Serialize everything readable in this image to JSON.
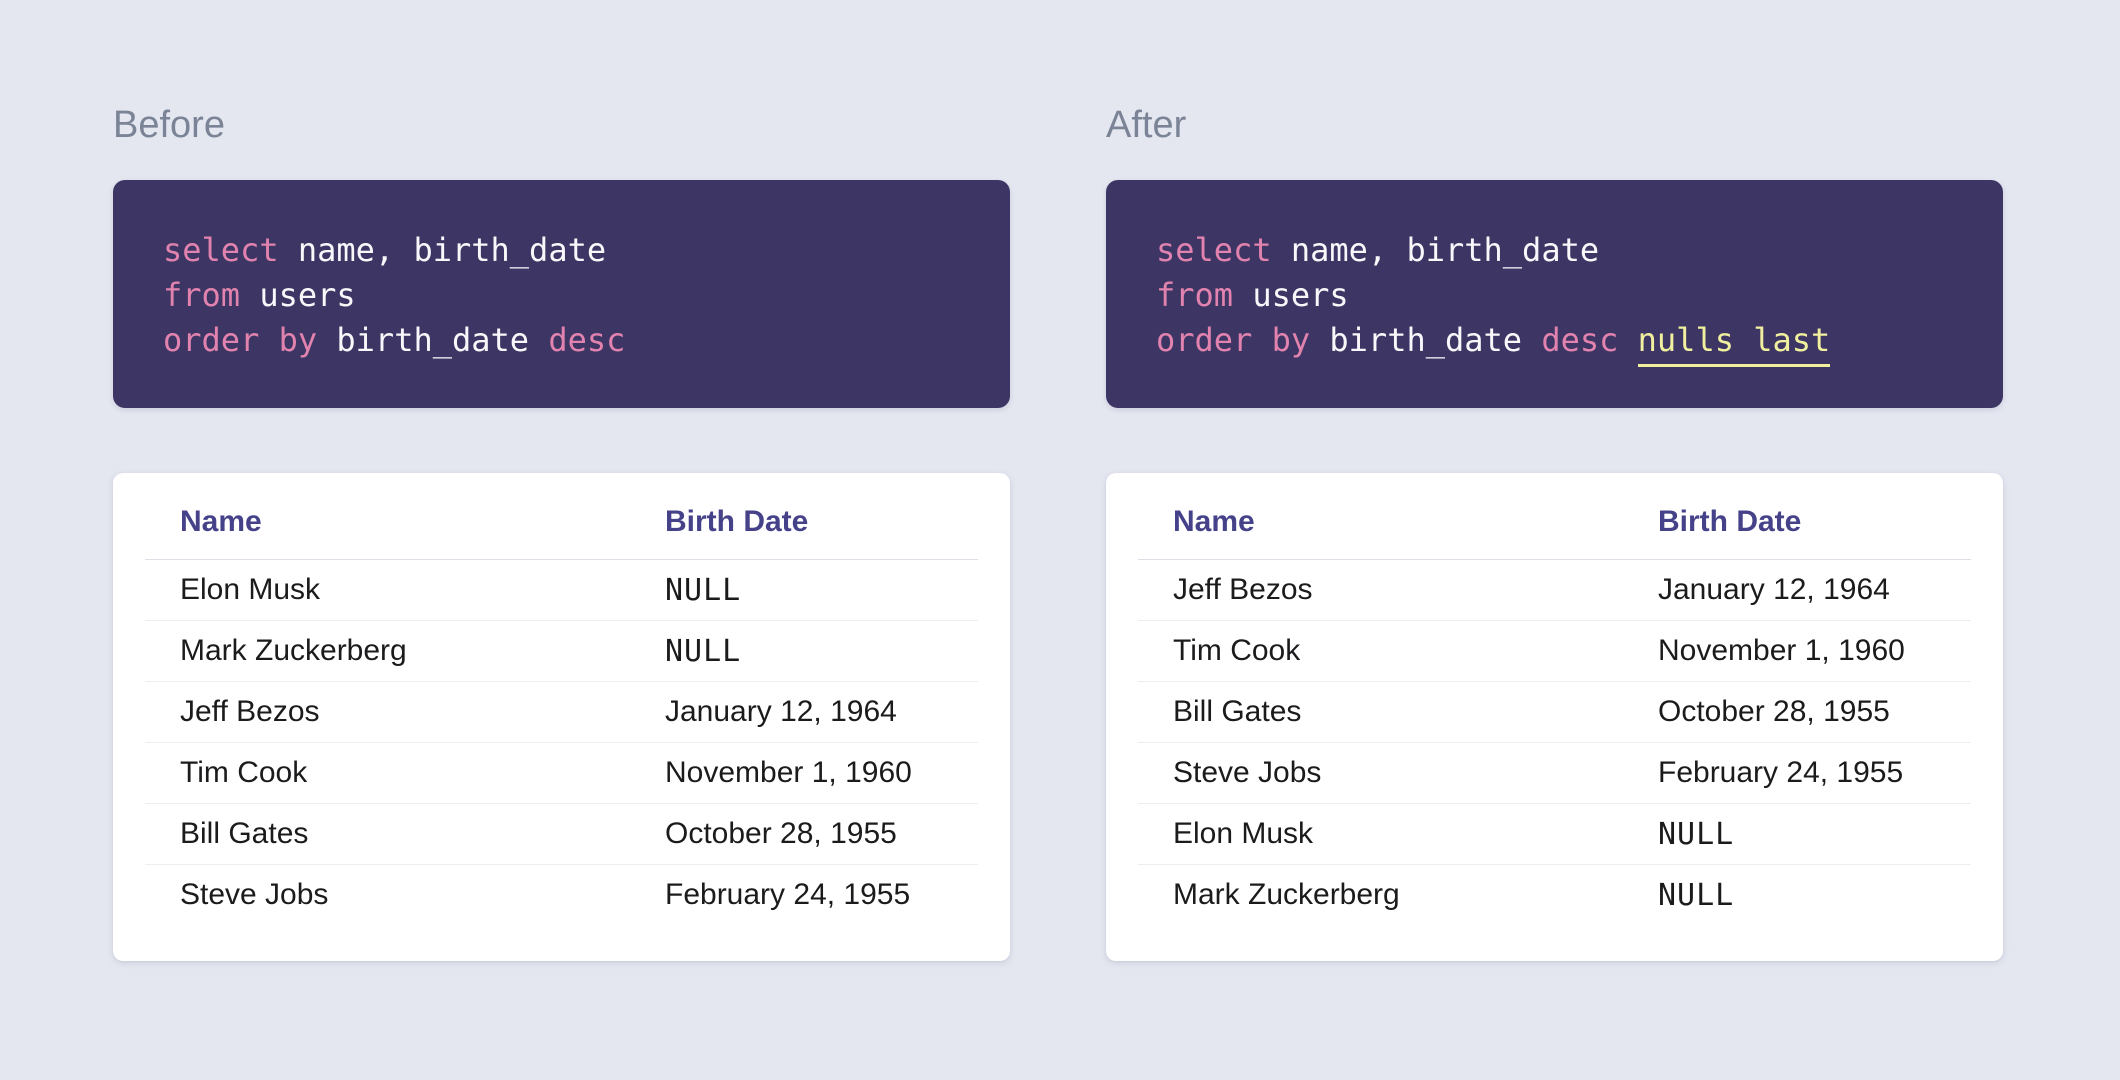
{
  "colors": {
    "page_background": "#E4E7F0",
    "code_background": "#3D3665",
    "keyword_pink": "#E183AE",
    "code_text": "#FAF7FA",
    "highlight_yellow": "#F0F09E",
    "table_header_indigo": "#464289",
    "heading_gray": "#7B8496",
    "null_gray": "#8A93A4",
    "cell_text": "#1B1B1D"
  },
  "panels": [
    {
      "id": "before",
      "heading": "Before",
      "code": {
        "lines": [
          {
            "segments": [
              {
                "text": "select",
                "style": "keyword"
              },
              {
                "text": " name, birth_date",
                "style": "plain"
              }
            ]
          },
          {
            "segments": [
              {
                "text": "from",
                "style": "keyword"
              },
              {
                "text": " users",
                "style": "plain"
              }
            ]
          },
          {
            "segments": [
              {
                "text": "order by",
                "style": "keyword"
              },
              {
                "text": " birth_date ",
                "style": "plain"
              },
              {
                "text": "desc",
                "style": "keyword"
              }
            ]
          }
        ]
      },
      "table": {
        "columns": [
          "Name",
          "Birth Date"
        ],
        "rows": [
          {
            "name": "Elon Musk",
            "birth_date": "NULL",
            "null_value": true
          },
          {
            "name": "Mark Zuckerberg",
            "birth_date": "NULL",
            "null_value": true
          },
          {
            "name": "Jeff Bezos",
            "birth_date": "January 12, 1964",
            "null_value": false
          },
          {
            "name": "Tim Cook",
            "birth_date": "November 1, 1960",
            "null_value": false
          },
          {
            "name": "Bill Gates",
            "birth_date": "October 28, 1955",
            "null_value": false
          },
          {
            "name": "Steve Jobs",
            "birth_date": "February 24, 1955",
            "null_value": false
          }
        ]
      }
    },
    {
      "id": "after",
      "heading": "After",
      "code": {
        "lines": [
          {
            "segments": [
              {
                "text": "select",
                "style": "keyword"
              },
              {
                "text": " name, birth_date",
                "style": "plain"
              }
            ]
          },
          {
            "segments": [
              {
                "text": "from",
                "style": "keyword"
              },
              {
                "text": " users",
                "style": "plain"
              }
            ]
          },
          {
            "segments": [
              {
                "text": "order by",
                "style": "keyword"
              },
              {
                "text": " birth_date ",
                "style": "plain"
              },
              {
                "text": "desc",
                "style": "keyword"
              },
              {
                "text": " ",
                "style": "plain"
              },
              {
                "text": "nulls last",
                "style": "highlight"
              }
            ]
          }
        ]
      },
      "table": {
        "columns": [
          "Name",
          "Birth Date"
        ],
        "rows": [
          {
            "name": "Jeff Bezos",
            "birth_date": "January 12, 1964",
            "null_value": false
          },
          {
            "name": "Tim Cook",
            "birth_date": "November 1, 1960",
            "null_value": false
          },
          {
            "name": "Bill Gates",
            "birth_date": "October 28, 1955",
            "null_value": false
          },
          {
            "name": "Steve Jobs",
            "birth_date": "February 24, 1955",
            "null_value": false
          },
          {
            "name": "Elon Musk",
            "birth_date": "NULL",
            "null_value": true
          },
          {
            "name": "Mark Zuckerberg",
            "birth_date": "NULL",
            "null_value": true
          }
        ]
      }
    }
  ]
}
